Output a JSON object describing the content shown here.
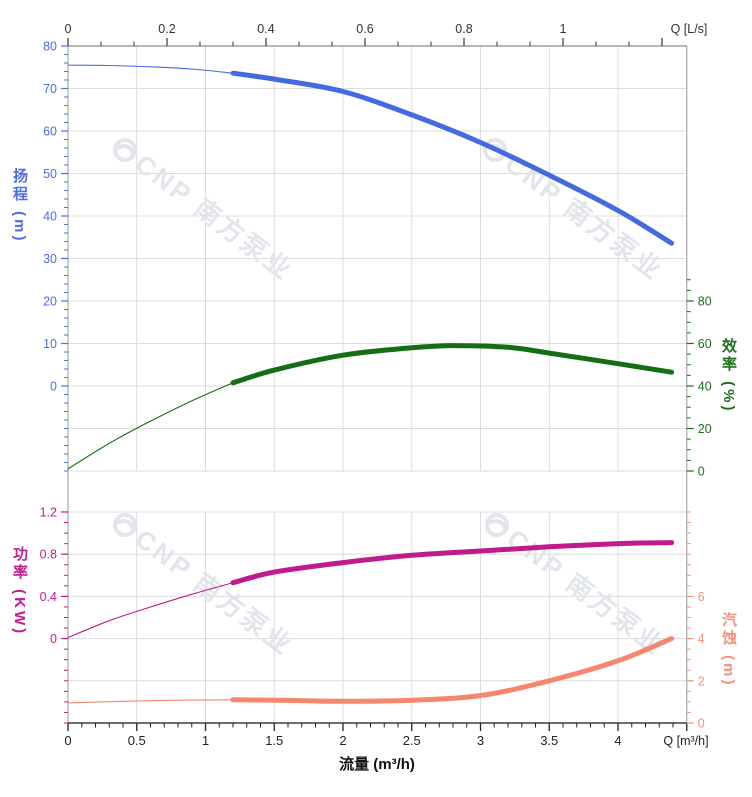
{
  "page": {
    "background": "#ffffff"
  },
  "watermark": {
    "text": "CNP 南方泵业",
    "color": "#E2E5EB"
  },
  "chart_data": {
    "type": "line",
    "title": "",
    "legend": false,
    "grid": true,
    "x_axis_bottom": {
      "title": "流量 (m³/h)",
      "unit_label": "Q [m³/h]",
      "range": [
        0,
        4.5
      ],
      "tick_values": [
        0,
        0.5,
        1,
        1.5,
        2,
        2.5,
        3,
        3.5,
        4
      ],
      "tick_labels": [
        "0",
        "0.5",
        "1",
        "1.5",
        "2",
        "2.5",
        "3",
        "3.5",
        "4"
      ],
      "minor_step": 0.1
    },
    "x_axis_top": {
      "unit_label": "Q [L/s]",
      "range": [
        0,
        1.25
      ],
      "tick_values": [
        0,
        0.2,
        0.4,
        0.6,
        0.8,
        1,
        1.2
      ],
      "tick_labels": [
        "0",
        "0.2",
        "0.4",
        "0.6",
        "0.8",
        "1",
        ""
      ],
      "m3h_per_lps": 3.6,
      "minor_divisions": 3
    },
    "y_axes": {
      "head": {
        "title": "扬程 (m)",
        "color": "#4569E0",
        "label_color": "#4B6FE0",
        "side": "left",
        "panel": "top",
        "tick_values": [
          80,
          70,
          60,
          50,
          40,
          30,
          20,
          10,
          0
        ],
        "minor_step": 2,
        "minor_range": [
          -20,
          80
        ]
      },
      "eff": {
        "title": "效率 (%)",
        "color": "#156E15",
        "label_color": "#1D6F1D",
        "side": "right",
        "panel": "top",
        "tick_values": [
          80,
          60,
          40,
          20,
          0
        ],
        "minor_step": 5,
        "minor_range": [
          0,
          90
        ]
      },
      "pow": {
        "title": "功率 (KW)",
        "color": "#C01A8C",
        "label_color": "#C01D8E",
        "side": "left",
        "panel": "bottom",
        "tick_values": [
          1.2,
          0.8,
          0.4,
          0
        ],
        "tick_labels": [
          "1.2",
          "0.8",
          "0.4",
          "0"
        ],
        "minor_step": 0.1,
        "minor_range": [
          -0.8,
          1.2
        ]
      },
      "npsh": {
        "title": "汽蚀 (m)",
        "color": "#F5876E",
        "label_color": "#F5917C",
        "side": "right",
        "panel": "bottom",
        "tick_values": [
          6,
          4,
          2,
          0
        ],
        "minor_step": 0.5,
        "minor_range": [
          0,
          10
        ]
      }
    },
    "series": [
      {
        "name": "扬程",
        "axis": "head",
        "color": "#4569E0",
        "thin": [
          [
            0,
            75.5
          ],
          [
            0.3,
            75.4
          ],
          [
            0.6,
            75.1
          ],
          [
            0.9,
            74.6
          ],
          [
            1.2,
            73.6
          ]
        ],
        "thick": [
          [
            1.2,
            73.6
          ],
          [
            1.5,
            72.2
          ],
          [
            2.0,
            69.3
          ],
          [
            2.5,
            63.8
          ],
          [
            3.0,
            57.3
          ],
          [
            3.5,
            49.6
          ],
          [
            4.0,
            41.3
          ],
          [
            4.39,
            33.6
          ]
        ]
      },
      {
        "name": "效率",
        "axis": "eff",
        "color": "#156E15",
        "thin": [
          [
            0,
            1
          ],
          [
            0.3,
            13
          ],
          [
            0.6,
            23.5
          ],
          [
            0.9,
            33
          ],
          [
            1.2,
            41.5
          ]
        ],
        "thick": [
          [
            1.2,
            41.5
          ],
          [
            1.5,
            47.5
          ],
          [
            2.0,
            54.5
          ],
          [
            2.5,
            58
          ],
          [
            2.8,
            59
          ],
          [
            3.2,
            58.2
          ],
          [
            3.5,
            55.5
          ],
          [
            4.0,
            50.5
          ],
          [
            4.39,
            46.5
          ]
        ]
      },
      {
        "name": "功率",
        "axis": "pow",
        "color": "#C01A8C",
        "thin": [
          [
            0,
            0.01
          ],
          [
            0.3,
            0.17
          ],
          [
            0.6,
            0.3
          ],
          [
            0.9,
            0.42
          ],
          [
            1.2,
            0.53
          ]
        ],
        "thick": [
          [
            1.2,
            0.53
          ],
          [
            1.5,
            0.63
          ],
          [
            2.0,
            0.72
          ],
          [
            2.5,
            0.79
          ],
          [
            3.0,
            0.83
          ],
          [
            3.5,
            0.87
          ],
          [
            4.0,
            0.9
          ],
          [
            4.39,
            0.91
          ]
        ]
      },
      {
        "name": "汽蚀",
        "axis": "npsh",
        "color": "#F5876E",
        "thin": [
          [
            0,
            0.95
          ],
          [
            0.4,
            1.03
          ],
          [
            0.8,
            1.08
          ],
          [
            1.2,
            1.1
          ]
        ],
        "thick": [
          [
            1.2,
            1.1
          ],
          [
            1.6,
            1.07
          ],
          [
            2.0,
            1.03
          ],
          [
            2.5,
            1.08
          ],
          [
            3.0,
            1.3
          ],
          [
            3.5,
            2.0
          ],
          [
            4.0,
            2.95
          ],
          [
            4.39,
            4.0
          ]
        ]
      }
    ]
  }
}
